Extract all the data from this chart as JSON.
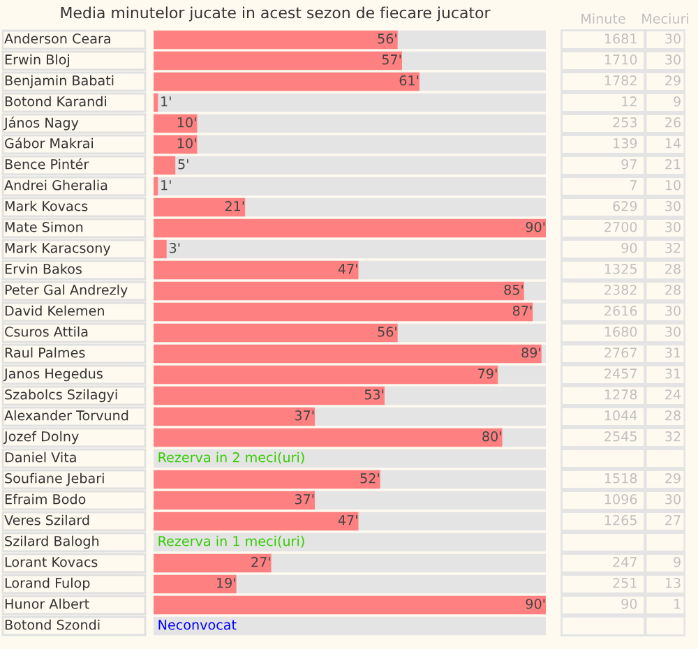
{
  "chart_data": [
    {
      "type": "bar",
      "orientation": "horizontal",
      "title": "Media minutelor jucate in acest sezon de fiecare jucator",
      "categories": [
        "Anderson Ceara",
        "Erwin Bloj",
        "Benjamin Babati",
        "Botond Karandi",
        "János Nagy",
        "Gábor Makrai",
        "Bence Pintér",
        "Andrei Gheralia",
        "Mark Kovacs",
        "Mate Simon",
        "Mark Karacsony",
        "Ervin Bakos",
        "Peter Gal Andrezly",
        "David Kelemen",
        "Csuros Attila",
        "Raul Palmes",
        "Janos Hegedus",
        "Szabolcs Szilagyi",
        "Alexander Torvund",
        "Jozef Dolny",
        "Daniel Vita",
        "Soufiane Jebari",
        "Efraim Bodo",
        "Veres Szilard",
        "Szilard Balogh",
        "Lorant Kovacs",
        "Lorand Fulop",
        "Hunor Albert",
        "Botond Szondi"
      ],
      "xlim": [
        0,
        90
      ],
      "tick_labels": "y",
      "series": [
        {
          "color": "#ff8080",
          "values": [
            56,
            57,
            61,
            1,
            10,
            10,
            5,
            1,
            21,
            90,
            3,
            47,
            85,
            87,
            56,
            89,
            79,
            53,
            37,
            80,
            null,
            52,
            37,
            47,
            null,
            27,
            19,
            90,
            null
          ],
          "value_labels": [
            "56'",
            "57'",
            "61'",
            "1'",
            "10'",
            "10'",
            "5'",
            "1'",
            "21'",
            "90'",
            "3'",
            "47'",
            "85'",
            "87'",
            "56'",
            "89'",
            "79'",
            "53'",
            "37'",
            "80'",
            null,
            "52'",
            "37'",
            "47'",
            null,
            "27'",
            "19'",
            "90'",
            null
          ]
        }
      ],
      "annotations": [
        "Rezerva in 2 meci(uri)",
        "Rezerva in 1 meci(uri)",
        "Neconvocat"
      ],
      "colors": [
        "#33cc00",
        "#33cc00",
        "#0000ff"
      ]
    },
    {
      "type": "other",
      "title": "Minute",
      "categories": [
        null,
        null,
        null,
        null,
        null,
        null,
        null,
        null,
        null,
        null,
        null,
        null,
        null,
        null,
        null,
        null,
        null,
        null,
        null,
        null,
        null,
        null,
        null,
        null,
        null,
        null,
        null,
        null,
        null
      ],
      "data_labels": true,
      "values": [
        1681,
        1710,
        1782,
        12,
        253,
        139,
        97,
        7,
        629,
        2700,
        90,
        1325,
        2382,
        2616,
        1680,
        2767,
        2457,
        1278,
        1044,
        2545,
        null,
        1518,
        1096,
        1265,
        null,
        247,
        251,
        90,
        null
      ]
    },
    {
      "type": "other",
      "title": "Meciuri",
      "categories": [
        null,
        null,
        null,
        null,
        null,
        null,
        null,
        null,
        null,
        null,
        null,
        null,
        null,
        null,
        null,
        null,
        null,
        null,
        null,
        null,
        null,
        null,
        null,
        null,
        null,
        null,
        null,
        null,
        null
      ],
      "data_labels": true,
      "values": [
        30,
        30,
        29,
        9,
        26,
        14,
        21,
        10,
        30,
        30,
        32,
        28,
        28,
        30,
        30,
        31,
        31,
        24,
        28,
        32,
        null,
        29,
        30,
        27,
        null,
        9,
        13,
        1,
        null
      ]
    }
  ]
}
